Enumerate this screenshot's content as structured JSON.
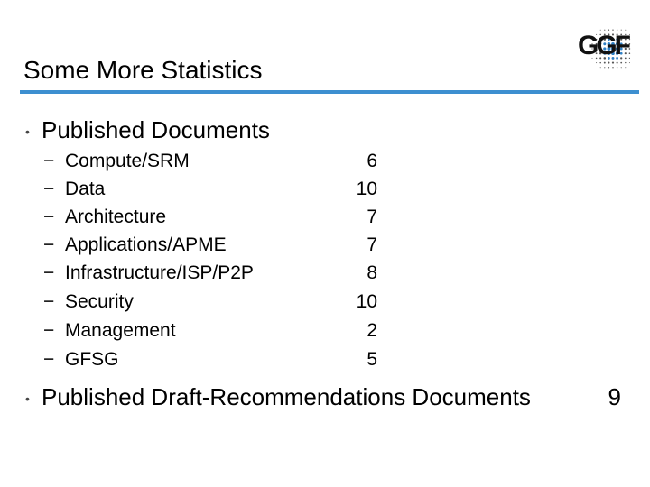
{
  "slide": {
    "title": "Some More Statistics",
    "logo_text": "GGF",
    "bullets": [
      {
        "marker": "•",
        "text": "Published Documents",
        "sub_marker": "−",
        "items": [
          {
            "label": "Compute/SRM",
            "value": "6"
          },
          {
            "label": "Data",
            "value": "10"
          },
          {
            "label": "Architecture",
            "value": "7"
          },
          {
            "label": "Applications/APME",
            "value": "7"
          },
          {
            "label": "Infrastructure/ISP/P2P",
            "value": "8"
          },
          {
            "label": "Security",
            "value": "10"
          },
          {
            "label": "Management",
            "value": "2"
          },
          {
            "label": "GFSG",
            "value": "5"
          }
        ]
      },
      {
        "marker": "•",
        "text": "Published Draft-Recommendations Documents",
        "value": "9"
      }
    ]
  },
  "colors": {
    "title_rule": "#3d8fd0",
    "logo_dots": "#2f7fc4",
    "text": "#000000"
  },
  "icons": {
    "logo": "ggf-logo-icon"
  }
}
